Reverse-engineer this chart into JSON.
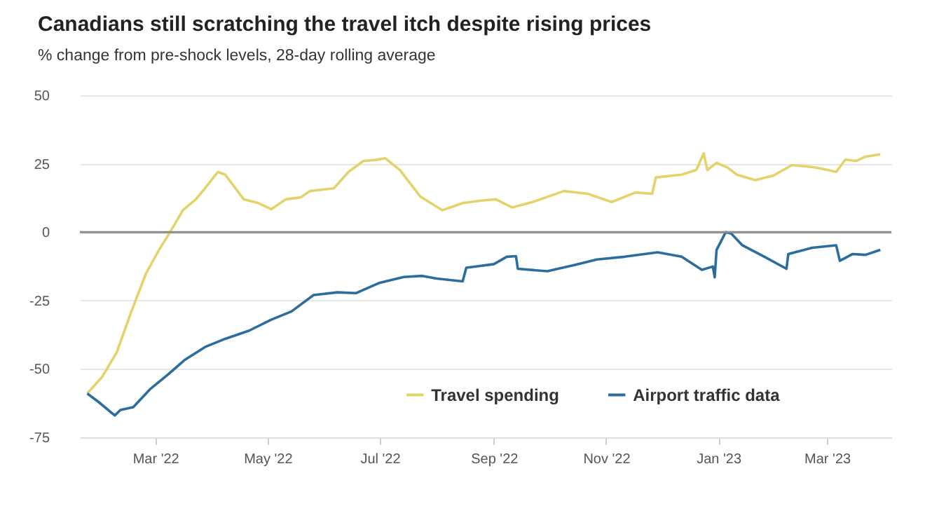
{
  "chart_data": {
    "type": "line",
    "title": "Canadians still scratching the travel itch despite rising prices",
    "subtitle": "% change from pre-shock levels, 28-day rolling average",
    "xlim": [
      "2022-01-19",
      "2023-04-05"
    ],
    "xticks": [
      {
        "value": "2022-03-01",
        "label": "Mar '22"
      },
      {
        "value": "2022-05-01",
        "label": "May '22"
      },
      {
        "value": "2022-07-01",
        "label": "Jul '22"
      },
      {
        "value": "2022-09-01",
        "label": "Sep '22"
      },
      {
        "value": "2022-11-01",
        "label": "Nov '22"
      },
      {
        "value": "2023-01-01",
        "label": "Jan '23"
      },
      {
        "value": "2023-03-01",
        "label": "Mar '23"
      }
    ],
    "ylim": [
      -75,
      50
    ],
    "yticks": [
      -75,
      -50,
      -25,
      0,
      25,
      50
    ],
    "grid": "y",
    "legend": "bottom",
    "ref_lines": [
      {
        "axis": "y",
        "value": 0,
        "color": "#8c8c8c"
      }
    ],
    "series": [
      {
        "name": "Travel spending",
        "color": "#e3d36b",
        "x": [
          "2022-01-23",
          "2022-01-31",
          "2022-02-08",
          "2022-02-16",
          "2022-02-24",
          "2022-03-03",
          "2022-03-09",
          "2022-03-16",
          "2022-03-23",
          "2022-03-28",
          "2022-04-04",
          "2022-04-08",
          "2022-04-18",
          "2022-04-26",
          "2022-05-03",
          "2022-05-11",
          "2022-05-19",
          "2022-05-24",
          "2022-06-06",
          "2022-06-14",
          "2022-06-22",
          "2022-06-29",
          "2022-07-04",
          "2022-07-12",
          "2022-07-23",
          "2022-08-04",
          "2022-08-15",
          "2022-08-25",
          "2022-09-02",
          "2022-09-11",
          "2022-09-22",
          "2022-10-09",
          "2022-10-22",
          "2022-11-04",
          "2022-11-17",
          "2022-11-26",
          "2022-11-28",
          "2022-12-12",
          "2022-12-20",
          "2022-12-24",
          "2022-12-26",
          "2022-12-31",
          "2023-01-06",
          "2023-01-11",
          "2023-01-21",
          "2023-01-31",
          "2023-02-10",
          "2023-02-23",
          "2023-03-06",
          "2023-03-11",
          "2023-03-17",
          "2023-03-22",
          "2023-03-30"
        ],
        "values": [
          -59,
          -53,
          -44,
          -29,
          -15,
          -6.5,
          0,
          8,
          12,
          16,
          22,
          21,
          12,
          10.6,
          8.4,
          12,
          12.7,
          15,
          16,
          22,
          26,
          26.4,
          27,
          22.6,
          13,
          8,
          10.6,
          11.5,
          12,
          9,
          11,
          15,
          14,
          11,
          14.5,
          14,
          20,
          21,
          22.7,
          28.8,
          22.7,
          25.3,
          23.6,
          21,
          19,
          20.7,
          24.5,
          23.6,
          22,
          26.5,
          26,
          27.6,
          28.4
        ]
      },
      {
        "name": "Airport traffic data",
        "color": "#2b6e9e",
        "x": [
          "2022-01-23",
          "2022-01-29",
          "2022-02-07",
          "2022-02-10",
          "2022-02-17",
          "2022-02-26",
          "2022-03-08",
          "2022-03-17",
          "2022-03-28",
          "2022-04-08",
          "2022-04-21",
          "2022-05-03",
          "2022-05-14",
          "2022-05-26",
          "2022-06-08",
          "2022-06-18",
          "2022-07-01",
          "2022-07-14",
          "2022-07-24",
          "2022-08-01",
          "2022-08-15",
          "2022-08-17",
          "2022-08-23",
          "2022-09-01",
          "2022-09-08",
          "2022-09-13",
          "2022-09-14",
          "2022-09-30",
          "2022-10-15",
          "2022-10-27",
          "2022-11-11",
          "2022-11-29",
          "2022-12-12",
          "2022-12-23",
          "2022-12-29",
          "2022-12-30",
          "2022-12-31",
          "2023-01-05",
          "2023-01-08",
          "2023-01-14",
          "2023-01-26",
          "2023-02-07",
          "2023-02-08",
          "2023-02-21",
          "2023-03-06",
          "2023-03-08",
          "2023-03-15",
          "2023-03-22",
          "2023-03-30"
        ],
        "values": [
          -59,
          -62,
          -67,
          -65,
          -64,
          -57.5,
          -52,
          -46.7,
          -42,
          -39,
          -36,
          -32,
          -29,
          -23,
          -22,
          -22.3,
          -18.5,
          -16.4,
          -16,
          -17,
          -18,
          -13,
          -12.5,
          -11.7,
          -9,
          -8.8,
          -13.4,
          -14.3,
          -12,
          -10,
          -9,
          -7.4,
          -9,
          -13.8,
          -12.6,
          -16.5,
          -6.5,
          0,
          -0.5,
          -4.8,
          -9,
          -13.4,
          -8,
          -5.7,
          -4.8,
          -10.5,
          -8,
          -8.3,
          -6.5
        ]
      }
    ]
  }
}
